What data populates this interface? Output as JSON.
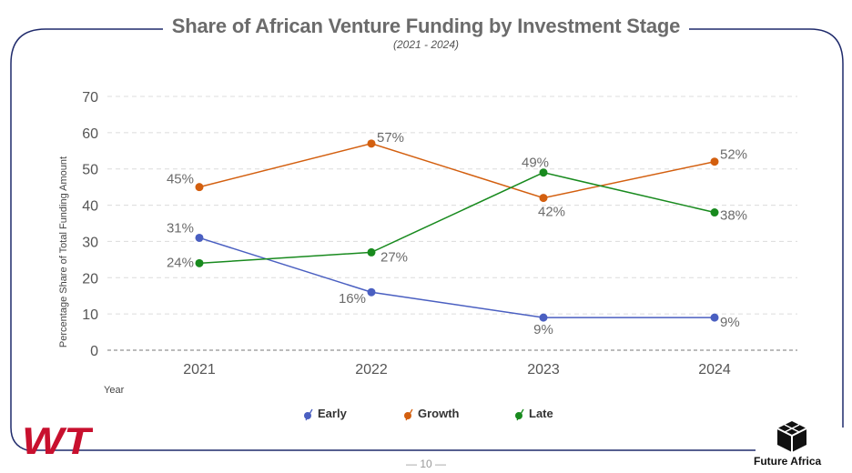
{
  "title": "Share of African Venture Funding by Investment Stage",
  "subtitle": "(2021 - 2024)",
  "page_number": "— 10 —",
  "brand_left": "WT",
  "brand_right": "Future Africa",
  "colors": {
    "frame": "#1f2a6b",
    "early": "#4a5fc1",
    "growth": "#d35f0f",
    "late": "#188a1e",
    "text": "#6b6b6b"
  },
  "chart_data": {
    "type": "line",
    "title": "Share of African Venture Funding by Investment Stage",
    "subtitle": "(2021 - 2024)",
    "xlabel": "Year",
    "ylabel": "Percentage Share of Total Funding Amount",
    "categories": [
      "2021",
      "2022",
      "2023",
      "2024"
    ],
    "ylim": [
      0,
      70
    ],
    "yticks": [
      0,
      10,
      20,
      30,
      40,
      50,
      60,
      70
    ],
    "ytick_labels": [
      "0",
      "10",
      "20",
      "30",
      "40",
      "50",
      "60",
      "70"
    ],
    "grid": true,
    "legend_position": "bottom",
    "series": [
      {
        "name": "Early",
        "color": "#4a5fc1",
        "values": [
          31,
          16,
          9,
          9
        ],
        "labels": [
          "31%",
          "16%",
          "9%",
          "9%"
        ]
      },
      {
        "name": "Growth",
        "color": "#d35f0f",
        "values": [
          45,
          57,
          42,
          52
        ],
        "labels": [
          "45%",
          "57%",
          "42%",
          "52%"
        ]
      },
      {
        "name": "Late",
        "color": "#188a1e",
        "values": [
          24,
          27,
          49,
          38
        ],
        "labels": [
          "24%",
          "27%",
          "49%",
          "38%"
        ]
      }
    ]
  }
}
